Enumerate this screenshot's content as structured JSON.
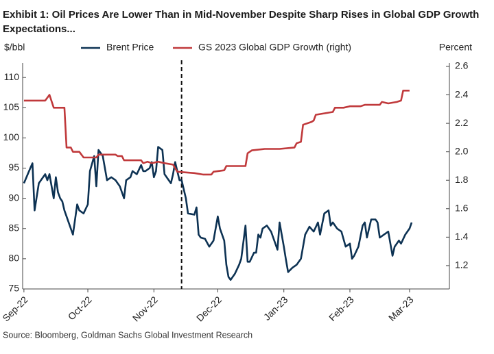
{
  "chart_data": {
    "type": "line",
    "title": [
      "Exhibit 1: Oil Prices Are Lower Than in Mid-November Despite Sharp Rises in Global GDP Growth",
      "Expectations..."
    ],
    "y_label": "$/bbl",
    "y2_label": "Percent",
    "source": "Source: Bloomberg, Goldman Sachs Global Investment Research",
    "xlim": [
      -0.6,
      199.7
    ],
    "xticks": [
      {
        "value": 0,
        "label": "Sep-22"
      },
      {
        "value": 30,
        "label": "Oct-22"
      },
      {
        "value": 61,
        "label": "Nov-22"
      },
      {
        "value": 91,
        "label": "Dec-22"
      },
      {
        "value": 122,
        "label": "Jan-23"
      },
      {
        "value": 153,
        "label": "Feb-23"
      },
      {
        "value": 181,
        "label": "Mar-23"
      }
    ],
    "ylim": [
      75,
      112.4
    ],
    "yticks": [
      75,
      80,
      85,
      90,
      95,
      100,
      105,
      110
    ],
    "y2lim": [
      1.036,
      2.624
    ],
    "y2ticks": [
      1.2,
      1.4,
      1.6,
      1.8,
      {
        "value": 2,
        "label": "2.0"
      },
      2.2,
      2.4,
      2.6
    ],
    "vline": 74,
    "grid": false,
    "series": [
      {
        "name": "Brent Price",
        "color": "#0d3253",
        "x": [
          0,
          3,
          4,
          5,
          7,
          9,
          10,
          11,
          12,
          14,
          15,
          16,
          17,
          18,
          19,
          21,
          23,
          25,
          26,
          28,
          30,
          31,
          33,
          34,
          35,
          37,
          39,
          41,
          43,
          45,
          47,
          48,
          50,
          51,
          53,
          55,
          56,
          57,
          59,
          60,
          61,
          62,
          63,
          65,
          66,
          68,
          69,
          70,
          71,
          72,
          73,
          74,
          76,
          77,
          80,
          81,
          82,
          83,
          85,
          87,
          89,
          91,
          92,
          94,
          95,
          96,
          97,
          99,
          101,
          102,
          104,
          105,
          106,
          108,
          109,
          110,
          111,
          112,
          114,
          116,
          117,
          119,
          120,
          121,
          122,
          123,
          124,
          126,
          128,
          130,
          131,
          132,
          134,
          136,
          138,
          139,
          141,
          143,
          144,
          145,
          147,
          149,
          151,
          153,
          154,
          155,
          157,
          159,
          160,
          161,
          163,
          165,
          166,
          167,
          169,
          171,
          173,
          174,
          176,
          177,
          179,
          181,
          182
        ],
        "values": [
          92.5,
          95,
          95.8,
          88,
          92.5,
          93.5,
          94,
          93,
          94,
          90,
          93.5,
          91,
          90,
          89.5,
          88,
          86,
          84,
          89,
          88,
          87.5,
          89,
          94.5,
          97,
          92,
          98,
          97,
          93,
          93.5,
          93,
          92,
          90,
          93,
          93.5,
          94.5,
          94,
          95.5,
          94.5,
          94.5,
          95,
          96,
          93.5,
          94.5,
          98.5,
          98,
          94,
          93,
          92.5,
          94,
          96,
          94.5,
          93,
          93,
          90,
          87.5,
          87.3,
          88.5,
          84,
          83.5,
          83.3,
          82,
          83,
          87,
          85,
          83,
          79,
          77,
          76.5,
          77.5,
          79,
          80,
          85.5,
          79.5,
          79.5,
          81,
          81,
          84,
          83.5,
          85,
          85.5,
          84.5,
          83.5,
          81.5,
          86,
          84,
          82,
          79.8,
          77.8,
          78.5,
          79,
          80,
          82,
          84,
          85.3,
          84.5,
          86,
          84,
          87.5,
          88,
          85.5,
          86,
          85,
          84.5,
          82,
          82.5,
          80,
          80.5,
          82,
          85.5,
          86,
          83.5,
          86.5,
          86.5,
          86,
          83.5,
          84,
          84.5,
          80.5,
          82,
          83,
          82.5,
          84,
          85,
          86
        ]
      },
      {
        "name": "GS 2023 Global GDP Growth (right)",
        "color": "#c0393b",
        "axis": "y2",
        "x": [
          0,
          8,
          10,
          12,
          14,
          19,
          20,
          22,
          23,
          26,
          27,
          28,
          34,
          35,
          43,
          44,
          46,
          47,
          53,
          55,
          56,
          58,
          60,
          63,
          66,
          70,
          72,
          80,
          84,
          88,
          89,
          94,
          95,
          104,
          105,
          107,
          113,
          120,
          127,
          128,
          130,
          131,
          135,
          136,
          137,
          145,
          146,
          150,
          153,
          158,
          160,
          167,
          168,
          171,
          175,
          177,
          178,
          181
        ],
        "values": [
          2.36,
          2.36,
          2.36,
          2.4,
          2.31,
          2.31,
          2.03,
          2.03,
          2.0,
          2.0,
          1.98,
          1.96,
          1.96,
          1.98,
          1.98,
          1.97,
          1.97,
          1.94,
          1.94,
          1.94,
          1.92,
          1.93,
          1.92,
          1.93,
          1.92,
          1.91,
          1.86,
          1.85,
          1.84,
          1.84,
          1.86,
          1.87,
          1.9,
          1.9,
          1.99,
          2.01,
          2.02,
          2.02,
          2.03,
          2.06,
          2.07,
          2.19,
          2.21,
          2.22,
          2.26,
          2.28,
          2.31,
          2.31,
          2.32,
          2.32,
          2.33,
          2.33,
          2.35,
          2.34,
          2.35,
          2.36,
          2.43,
          2.43
        ]
      }
    ]
  }
}
